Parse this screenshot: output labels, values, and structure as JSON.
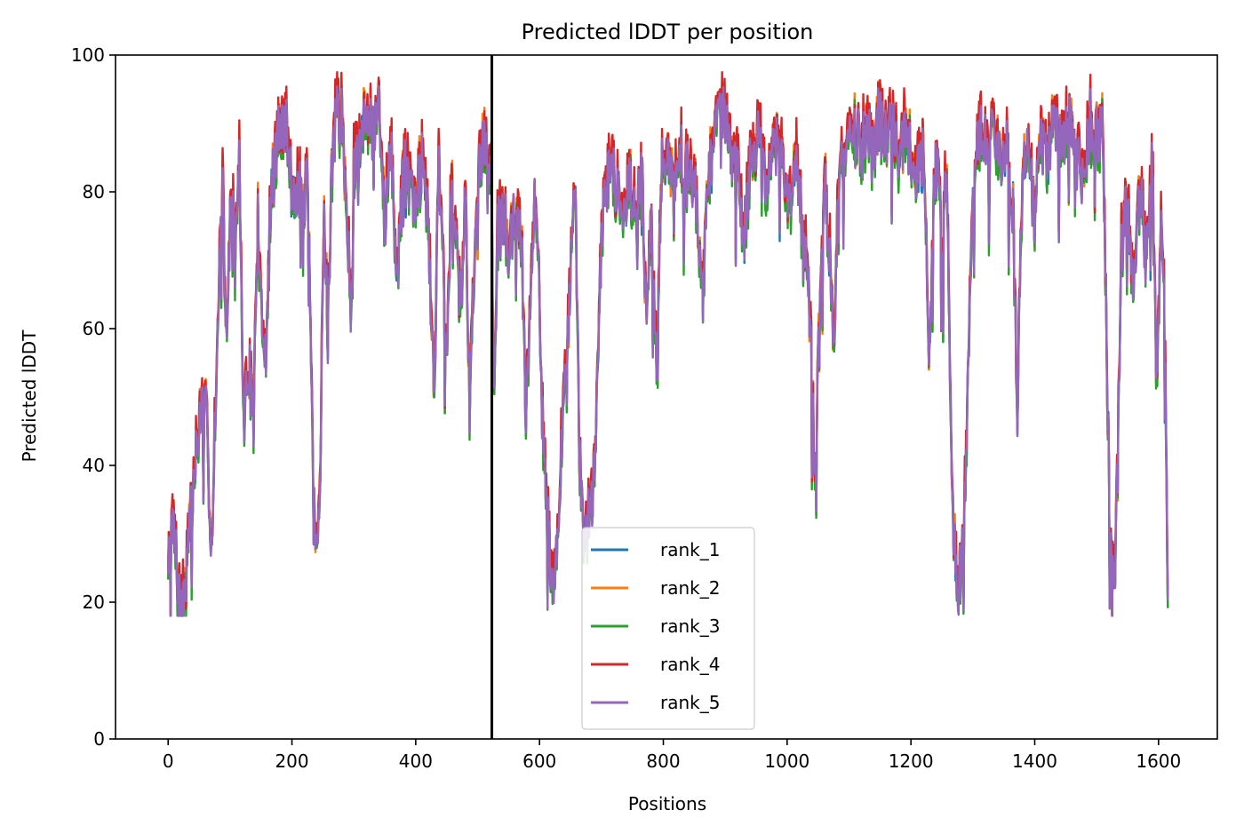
{
  "chart_data": {
    "type": "line",
    "title": "Predicted lDDT per position",
    "xlabel": "Positions",
    "ylabel": "Predicted lDDT",
    "xlim": [
      -85,
      1695
    ],
    "ylim": [
      0,
      100
    ],
    "xticks": [
      0,
      200,
      400,
      600,
      800,
      1000,
      1200,
      1400,
      1600
    ],
    "yticks": [
      0,
      20,
      40,
      60,
      80,
      100
    ],
    "grid": false,
    "legend_position": "lower-center",
    "vertical_line": 523,
    "series": [
      {
        "name": "rank_1",
        "color": "#1f77b4",
        "offset": 0.0,
        "noise": 1.2
      },
      {
        "name": "rank_2",
        "color": "#ff7f0e",
        "offset": 0.4,
        "noise": 1.5
      },
      {
        "name": "rank_3",
        "color": "#2ca02c",
        "offset": -0.8,
        "noise": 1.4
      },
      {
        "name": "rank_4",
        "color": "#d62728",
        "offset": 1.2,
        "noise": 1.8
      },
      {
        "name": "rank_5",
        "color": "#9467bd",
        "offset": -0.2,
        "noise": 1.0
      }
    ],
    "profile": [
      [
        0,
        27
      ],
      [
        5,
        32
      ],
      [
        10,
        29
      ],
      [
        18,
        20
      ],
      [
        25,
        19
      ],
      [
        32,
        28
      ],
      [
        40,
        36
      ],
      [
        48,
        44
      ],
      [
        55,
        50
      ],
      [
        62,
        47
      ],
      [
        70,
        28
      ],
      [
        78,
        55
      ],
      [
        88,
        84
      ],
      [
        95,
        58
      ],
      [
        102,
        84
      ],
      [
        108,
        70
      ],
      [
        115,
        84
      ],
      [
        122,
        46
      ],
      [
        130,
        55
      ],
      [
        138,
        48
      ],
      [
        145,
        76
      ],
      [
        150,
        62
      ],
      [
        158,
        55
      ],
      [
        165,
        78
      ],
      [
        172,
        84
      ],
      [
        180,
        89
      ],
      [
        190,
        90
      ],
      [
        200,
        80
      ],
      [
        210,
        82
      ],
      [
        218,
        76
      ],
      [
        225,
        86
      ],
      [
        232,
        48
      ],
      [
        237,
        31
      ],
      [
        245,
        33
      ],
      [
        252,
        78
      ],
      [
        258,
        60
      ],
      [
        264,
        84
      ],
      [
        272,
        92
      ],
      [
        280,
        91
      ],
      [
        288,
        79
      ],
      [
        295,
        62
      ],
      [
        300,
        83
      ],
      [
        310,
        88
      ],
      [
        320,
        93
      ],
      [
        330,
        89
      ],
      [
        340,
        93
      ],
      [
        350,
        76
      ],
      [
        360,
        86
      ],
      [
        370,
        68
      ],
      [
        380,
        84
      ],
      [
        390,
        82
      ],
      [
        400,
        78
      ],
      [
        410,
        85
      ],
      [
        420,
        76
      ],
      [
        430,
        50
      ],
      [
        437,
        86
      ],
      [
        445,
        70
      ],
      [
        450,
        55
      ],
      [
        458,
        83
      ],
      [
        465,
        74
      ],
      [
        472,
        62
      ],
      [
        480,
        80
      ],
      [
        487,
        48
      ],
      [
        495,
        72
      ],
      [
        503,
        84
      ],
      [
        510,
        88
      ],
      [
        517,
        82
      ],
      [
        522,
        85
      ],
      [
        526,
        50
      ],
      [
        532,
        74
      ],
      [
        540,
        78
      ],
      [
        550,
        72
      ],
      [
        558,
        75
      ],
      [
        565,
        76
      ],
      [
        572,
        70
      ],
      [
        578,
        45
      ],
      [
        585,
        64
      ],
      [
        592,
        78
      ],
      [
        598,
        72
      ],
      [
        604,
        48
      ],
      [
        612,
        35
      ],
      [
        620,
        22
      ],
      [
        628,
        26
      ],
      [
        635,
        42
      ],
      [
        645,
        55
      ],
      [
        652,
        76
      ],
      [
        658,
        78
      ],
      [
        665,
        40
      ],
      [
        672,
        30
      ],
      [
        680,
        32
      ],
      [
        690,
        40
      ],
      [
        698,
        70
      ],
      [
        705,
        80
      ],
      [
        715,
        85
      ],
      [
        725,
        80
      ],
      [
        735,
        78
      ],
      [
        745,
        82
      ],
      [
        755,
        76
      ],
      [
        765,
        84
      ],
      [
        772,
        62
      ],
      [
        780,
        78
      ],
      [
        790,
        52
      ],
      [
        797,
        84
      ],
      [
        805,
        86
      ],
      [
        815,
        80
      ],
      [
        825,
        88
      ],
      [
        835,
        82
      ],
      [
        845,
        84
      ],
      [
        855,
        78
      ],
      [
        862,
        65
      ],
      [
        870,
        82
      ],
      [
        880,
        86
      ],
      [
        890,
        92
      ],
      [
        900,
        90
      ],
      [
        910,
        86
      ],
      [
        920,
        84
      ],
      [
        930,
        72
      ],
      [
        940,
        84
      ],
      [
        950,
        88
      ],
      [
        960,
        86
      ],
      [
        968,
        80
      ],
      [
        975,
        86
      ],
      [
        985,
        88
      ],
      [
        995,
        84
      ],
      [
        1005,
        78
      ],
      [
        1015,
        84
      ],
      [
        1022,
        78
      ],
      [
        1030,
        72
      ],
      [
        1038,
        60
      ],
      [
        1045,
        38
      ],
      [
        1052,
        60
      ],
      [
        1060,
        84
      ],
      [
        1068,
        72
      ],
      [
        1075,
        58
      ],
      [
        1083,
        80
      ],
      [
        1090,
        86
      ],
      [
        1100,
        88
      ],
      [
        1110,
        90
      ],
      [
        1120,
        86
      ],
      [
        1130,
        90
      ],
      [
        1140,
        86
      ],
      [
        1150,
        92
      ],
      [
        1160,
        88
      ],
      [
        1170,
        90
      ],
      [
        1180,
        84
      ],
      [
        1190,
        90
      ],
      [
        1200,
        86
      ],
      [
        1210,
        82
      ],
      [
        1220,
        86
      ],
      [
        1230,
        56
      ],
      [
        1238,
        82
      ],
      [
        1245,
        84
      ],
      [
        1252,
        72
      ],
      [
        1258,
        86
      ],
      [
        1262,
        60
      ],
      [
        1268,
        32
      ],
      [
        1275,
        22
      ],
      [
        1282,
        26
      ],
      [
        1290,
        42
      ],
      [
        1298,
        78
      ],
      [
        1305,
        86
      ],
      [
        1315,
        90
      ],
      [
        1325,
        86
      ],
      [
        1335,
        90
      ],
      [
        1345,
        84
      ],
      [
        1355,
        88
      ],
      [
        1365,
        76
      ],
      [
        1372,
        48
      ],
      [
        1380,
        82
      ],
      [
        1390,
        86
      ],
      [
        1400,
        76
      ],
      [
        1410,
        88
      ],
      [
        1420,
        84
      ],
      [
        1430,
        90
      ],
      [
        1440,
        86
      ],
      [
        1450,
        90
      ],
      [
        1460,
        88
      ],
      [
        1470,
        84
      ],
      [
        1480,
        82
      ],
      [
        1490,
        90
      ],
      [
        1500,
        88
      ],
      [
        1510,
        90
      ],
      [
        1516,
        58
      ],
      [
        1522,
        28
      ],
      [
        1530,
        24
      ],
      [
        1540,
        72
      ],
      [
        1550,
        80
      ],
      [
        1558,
        66
      ],
      [
        1565,
        76
      ],
      [
        1572,
        80
      ],
      [
        1580,
        70
      ],
      [
        1590,
        84
      ],
      [
        1597,
        52
      ],
      [
        1605,
        78
      ],
      [
        1610,
        60
      ],
      [
        1615,
        20
      ]
    ]
  }
}
